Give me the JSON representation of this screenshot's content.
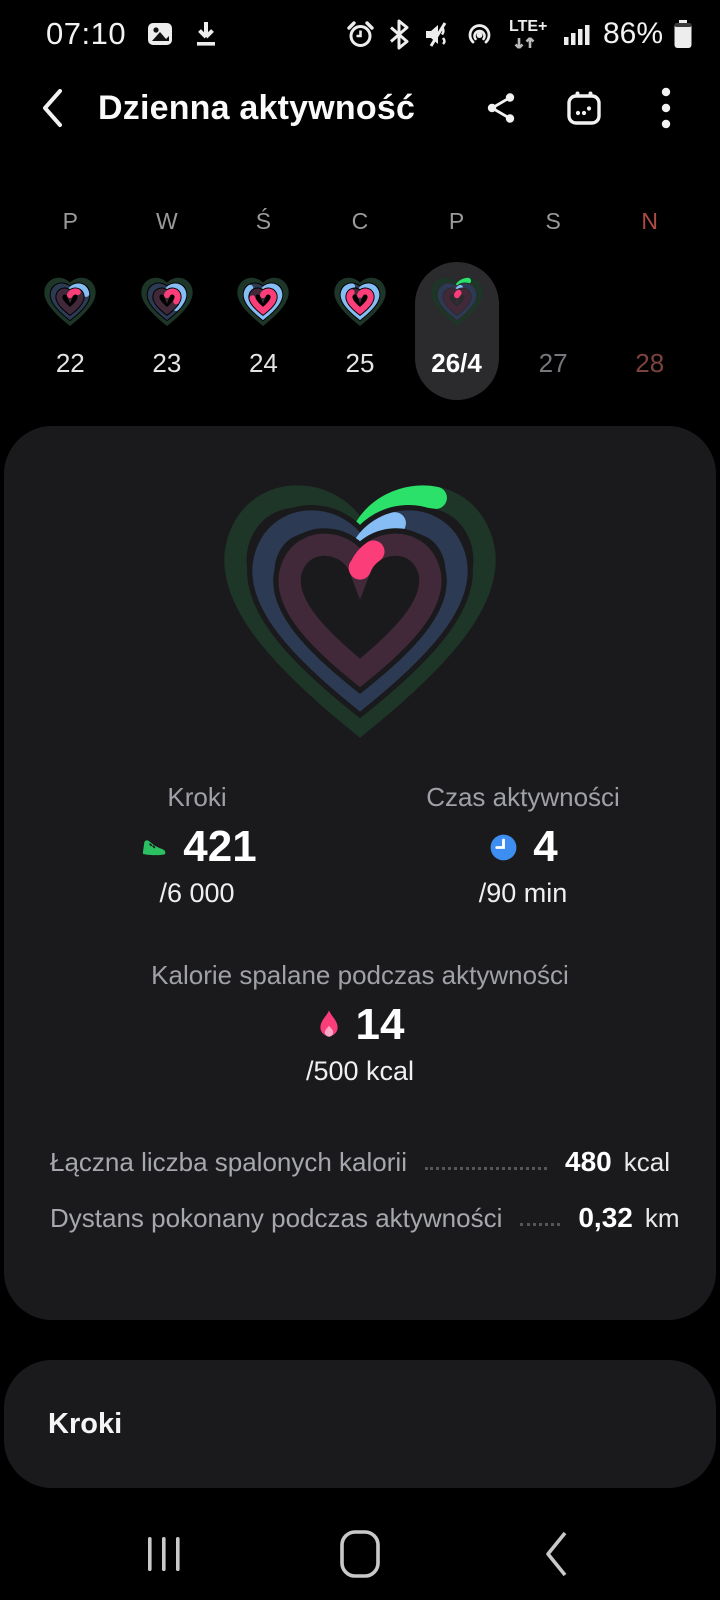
{
  "colors": {
    "steps_green": "#2ce169",
    "time_blue": "#85bdf4",
    "cal_pink": "#fb3d79",
    "track_green": "#1e3628",
    "track_blue": "#2c3a54",
    "track_pink": "#412939",
    "card_bg": "#1a1a1d",
    "pill_bg": "#2b2b2e",
    "sunday_red": "#ad4b45",
    "sunday_date_red": "#7c433e",
    "future_gray": "#76777c"
  },
  "status_bar": {
    "time": "07:10",
    "network_label": "LTE+",
    "battery_percent": "86%",
    "left_icons": [
      "image-icon",
      "download-icon"
    ],
    "right_icons": [
      "alarm-icon",
      "bluetooth-icon",
      "mute-icon",
      "hotspot-icon",
      "lte-plus-icon",
      "signal-icon",
      "battery-icon"
    ]
  },
  "header": {
    "title": "Dzienna aktywność",
    "actions": [
      "share-icon",
      "calendar-icon",
      "more-icon"
    ]
  },
  "week": {
    "days": [
      {
        "letter": "P",
        "date": "22",
        "selected": false,
        "has_rings": true,
        "rings": {
          "green": 0,
          "blue": 22,
          "pink": 14
        }
      },
      {
        "letter": "W",
        "date": "23",
        "selected": false,
        "has_rings": true,
        "rings": {
          "green": 0,
          "blue": 38,
          "pink": 30
        }
      },
      {
        "letter": "Ś",
        "date": "24",
        "selected": false,
        "has_rings": true,
        "rings": {
          "green": 0,
          "blue": 85,
          "pink": 75
        }
      },
      {
        "letter": "C",
        "date": "25",
        "selected": false,
        "has_rings": true,
        "rings": {
          "green": 0,
          "blue": 90,
          "pink": 85
        }
      },
      {
        "letter": "P",
        "date": "26/4",
        "selected": true,
        "has_rings": true,
        "rings": {
          "green": 10,
          "blue": 5,
          "pink": 4
        }
      },
      {
        "letter": "S",
        "date": "27",
        "selected": false,
        "has_rings": false,
        "future": true
      },
      {
        "letter": "N",
        "date": "28",
        "selected": false,
        "has_rings": false,
        "future": true,
        "sunday": true
      }
    ]
  },
  "main": {
    "rings_display": {
      "green": 12,
      "blue": 8,
      "pink": 5
    },
    "steps": {
      "label": "Kroki",
      "value": "421",
      "goal": "/6 000"
    },
    "active_time": {
      "label": "Czas aktywności",
      "value": "4",
      "goal": "/90 min"
    },
    "activity_calories": {
      "label": "Kalorie spalane podczas aktywności",
      "value": "14",
      "goal": "/500 kcal"
    },
    "details": [
      {
        "label": "Łączna liczba spalonych kalorii",
        "value": "480",
        "unit": "kcal"
      },
      {
        "label": "Dystans pokonany podczas aktywności",
        "value": "0,32",
        "unit": "km"
      }
    ]
  },
  "steps_section": {
    "title": "Kroki"
  },
  "nav_bar": {
    "icons": [
      "recents-icon",
      "home-icon",
      "back-icon"
    ]
  }
}
